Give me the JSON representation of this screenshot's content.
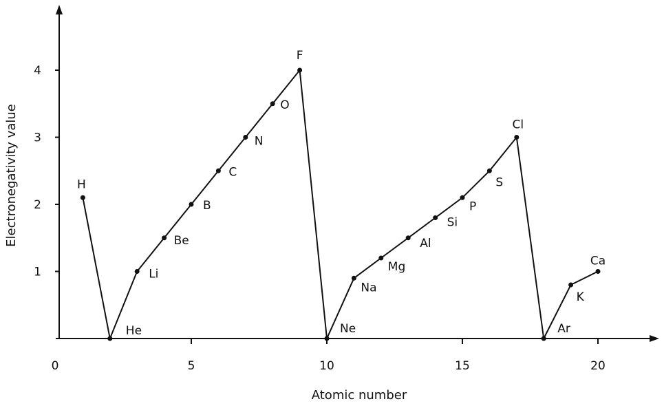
{
  "chart_data": {
    "type": "line",
    "title": "",
    "xlabel": "Atomic number",
    "ylabel": "Electronegativity value",
    "xlim": [
      0,
      22
    ],
    "ylim": [
      0,
      4.6
    ],
    "xticks": [
      "0",
      "5",
      "10",
      "15",
      "20"
    ],
    "yticks": [
      "1",
      "2",
      "3",
      "4"
    ],
    "grid": false,
    "series": [
      {
        "points": [
          {
            "label": "H",
            "x": 1,
            "y": 2.1
          },
          {
            "label": "He",
            "x": 2,
            "y": 0
          },
          {
            "label": "Li",
            "x": 3,
            "y": 1.0
          },
          {
            "label": "Be",
            "x": 4,
            "y": 1.5
          },
          {
            "label": "B",
            "x": 5,
            "y": 2.0
          },
          {
            "label": "C",
            "x": 6,
            "y": 2.5
          },
          {
            "label": "N",
            "x": 7,
            "y": 3.0
          },
          {
            "label": "O",
            "x": 8,
            "y": 3.5
          },
          {
            "label": "F",
            "x": 9,
            "y": 4.0
          },
          {
            "label": "Ne",
            "x": 10,
            "y": 0
          },
          {
            "label": "Na",
            "x": 11,
            "y": 0.9
          },
          {
            "label": "Mg",
            "x": 12,
            "y": 1.2
          },
          {
            "label": "Al",
            "x": 13,
            "y": 1.5
          },
          {
            "label": "Si",
            "x": 14,
            "y": 1.8
          },
          {
            "label": "P",
            "x": 15,
            "y": 2.1
          },
          {
            "label": "S",
            "x": 16,
            "y": 2.5
          },
          {
            "label": "Cl",
            "x": 17,
            "y": 3.0
          },
          {
            "label": "Ar",
            "x": 18,
            "y": 0
          },
          {
            "label": "K",
            "x": 19,
            "y": 0.8
          },
          {
            "label": "Ca",
            "x": 20,
            "y": 1.0
          }
        ]
      }
    ]
  }
}
